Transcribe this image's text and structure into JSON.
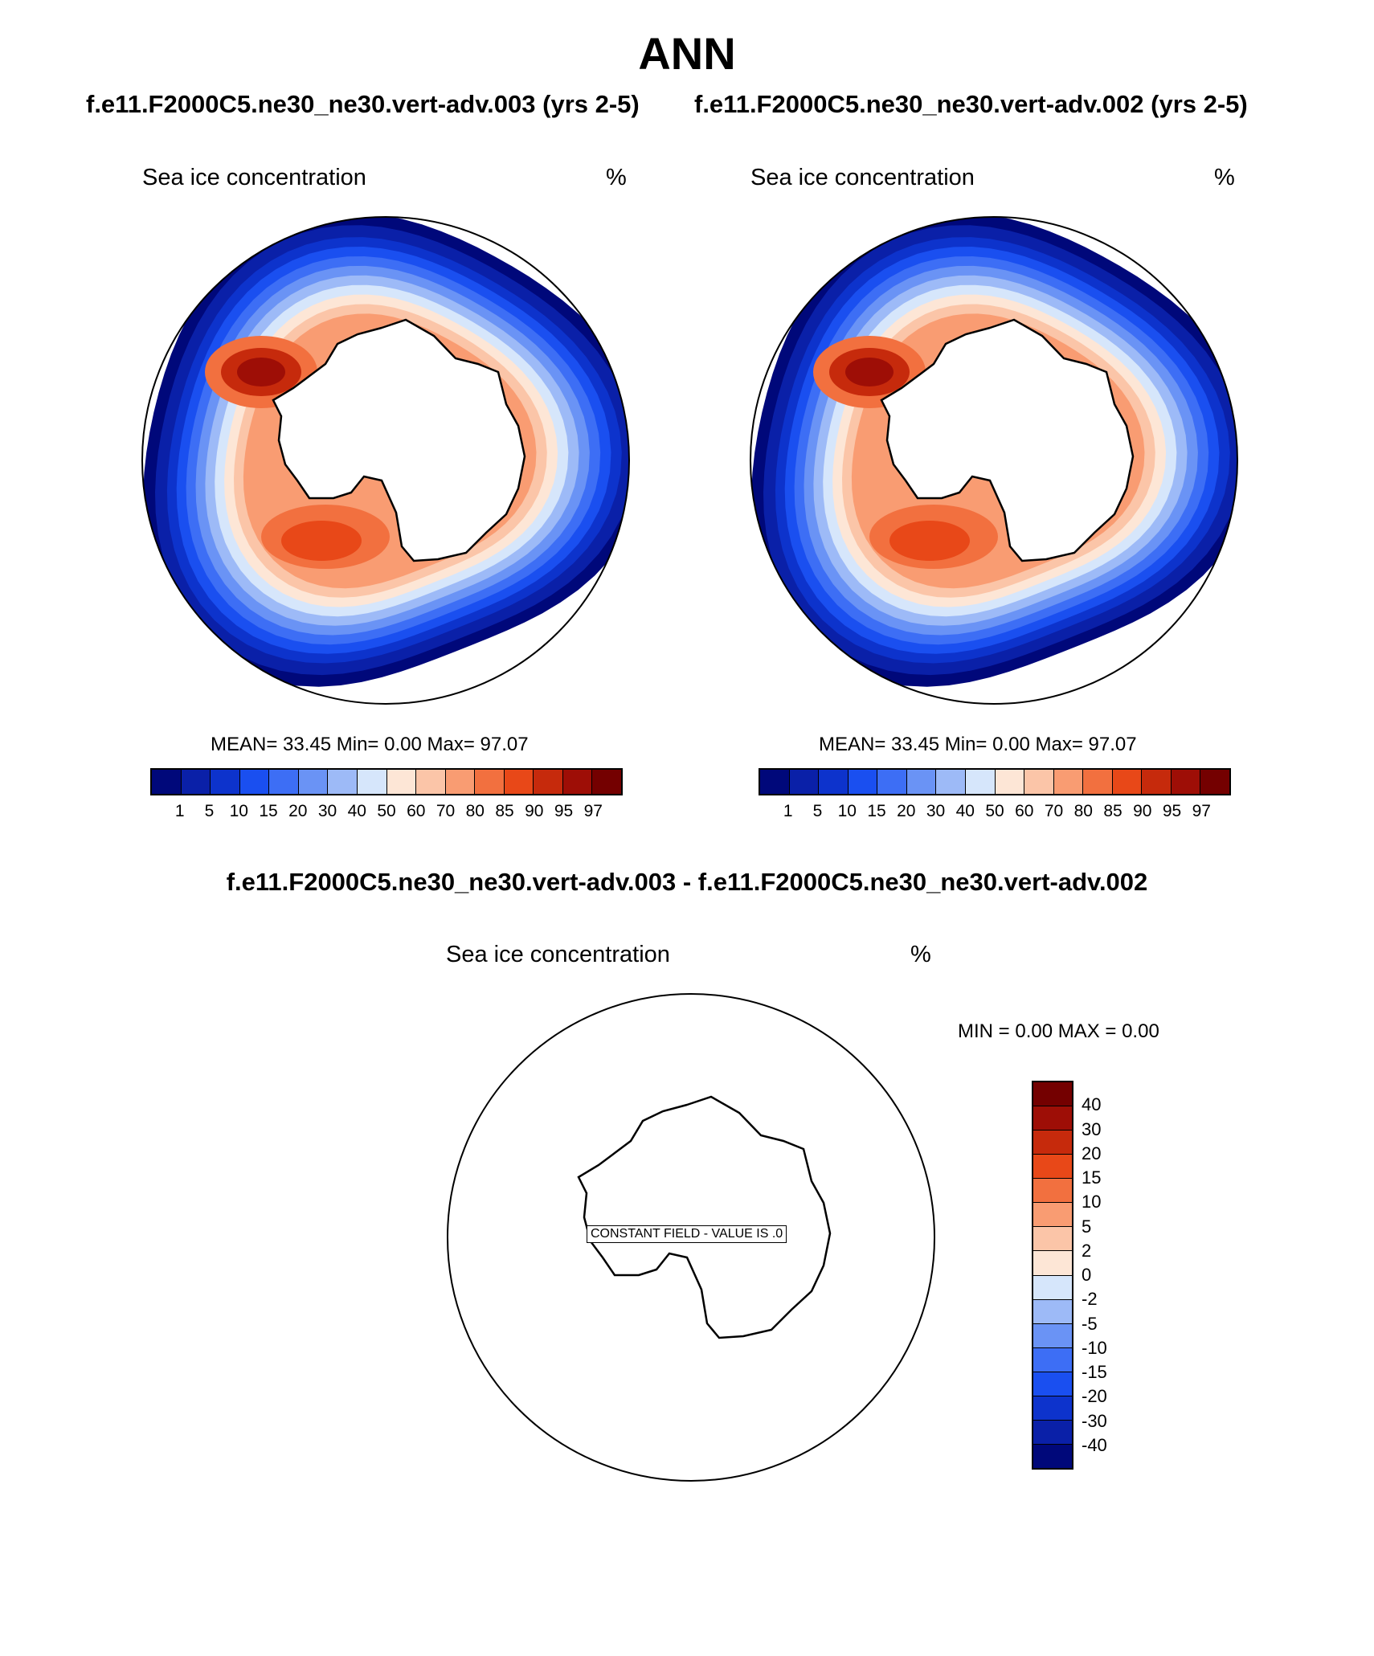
{
  "header": {
    "title": "ANN",
    "case_left": "f.e11.F2000C5.ne30_ne30.vert-adv.003 (yrs 2-5)",
    "case_right": "f.e11.F2000C5.ne30_ne30.vert-adv.002 (yrs 2-5)",
    "diff_title": "f.e11.F2000C5.ne30_ne30.vert-adv.003 - f.e11.F2000C5.ne30_ne30.vert-adv.002"
  },
  "panels": {
    "left": {
      "field": "Sea ice concentration",
      "units": "%",
      "stats": "MEAN=  33.45  Min=   0.00  Max=  97.07"
    },
    "right": {
      "field": "Sea ice concentration",
      "units": "%",
      "stats": "MEAN=  33.45  Min=   0.00  Max=  97.07"
    },
    "diff": {
      "field": "Sea ice concentration",
      "units": "%",
      "stats": "MIN =   0.00 MAX =   0.00",
      "note": "CONSTANT FIELD - VALUE IS .0"
    }
  },
  "colorbar_main": {
    "labels": [
      "1",
      "5",
      "10",
      "15",
      "20",
      "30",
      "40",
      "50",
      "60",
      "70",
      "80",
      "85",
      "90",
      "95",
      "97"
    ],
    "colors": [
      "#00087a",
      "#0a20a8",
      "#0d33cc",
      "#1a4ff0",
      "#3d6ef5",
      "#6a93f5",
      "#9dbaf7",
      "#d6e6fb",
      "#fde6d6",
      "#fbc5a8",
      "#f99c72",
      "#f2703f",
      "#e84818",
      "#c62a0c",
      "#9e0e06",
      "#740000"
    ]
  },
  "colorbar_diff": {
    "labels": [
      "40",
      "30",
      "20",
      "15",
      "10",
      "5",
      "2",
      "0",
      "-2",
      "-5",
      "-10",
      "-15",
      "-20",
      "-30",
      "-40"
    ],
    "colors": [
      "#740000",
      "#9e0e06",
      "#c62a0c",
      "#e84818",
      "#f2703f",
      "#f99c72",
      "#fbc5a8",
      "#fde6d6",
      "#d6e6fb",
      "#9dbaf7",
      "#6a93f5",
      "#3d6ef5",
      "#1a4ff0",
      "#0d33cc",
      "#0a20a8",
      "#00087a"
    ]
  }
}
